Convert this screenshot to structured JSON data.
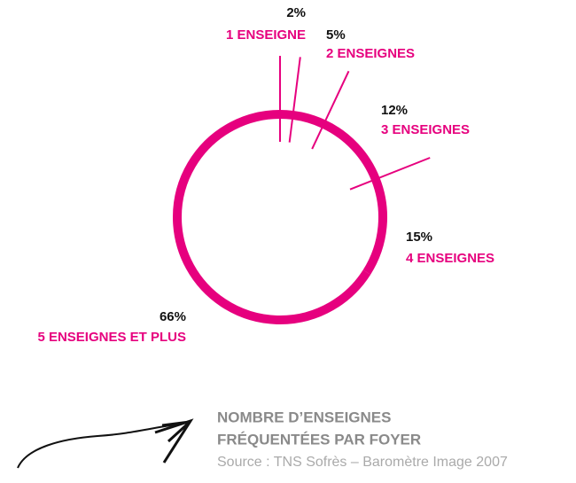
{
  "chart_data": {
    "type": "pie",
    "categories": [
      "1 ENSEIGNE",
      "2 ENSEIGNES",
      "3 ENSEIGNES",
      "4 ENSEIGNES",
      "5 ENSEIGNES ET PLUS"
    ],
    "values": [
      2,
      5,
      12,
      15,
      66
    ],
    "value_labels": [
      "2%",
      "5%",
      "12%",
      "15%",
      "66%"
    ],
    "color": "#e6007e",
    "title": [
      "NOMBRE D’ENSEIGNES",
      "FRÉQUENTÉES PAR FOYER"
    ],
    "source": "Source : TNS Sofrès – Baromètre Image 2007"
  }
}
